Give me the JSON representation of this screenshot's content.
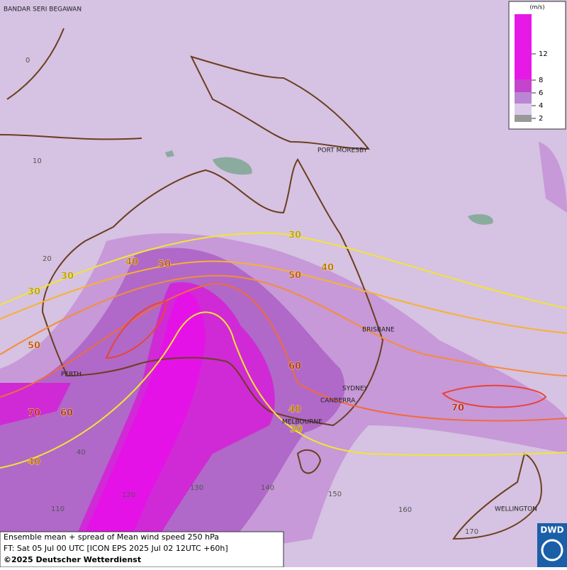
{
  "map": {
    "cities": [
      "BANDAR SERI BEGAWAN",
      "PORT MORESBY",
      "BRISBANE",
      "PERTH",
      "SYDNEY",
      "CANBERRA",
      "MELBOURNE",
      "WELLINGTON"
    ],
    "grid_labels": [
      0,
      10,
      20,
      40,
      110,
      120,
      130,
      140,
      150,
      160,
      170
    ],
    "contour_labels": [
      30,
      30,
      30,
      30,
      40,
      40,
      40,
      40,
      50,
      50,
      50,
      60,
      60,
      70,
      70
    ]
  },
  "legend": {
    "unit": "(m/s)",
    "ticks": [
      12,
      8,
      6,
      4,
      2
    ]
  },
  "footer": {
    "line1": "Ensemble mean + spread of Mean wind speed 250 hPa",
    "line2": "FT: Sat 05 Jul 00 UTC [ICON EPS 2025 Jul 02 12UTC +60h]",
    "line3": "©2025 Deutscher Wetterdienst"
  },
  "logo": "DWD"
}
